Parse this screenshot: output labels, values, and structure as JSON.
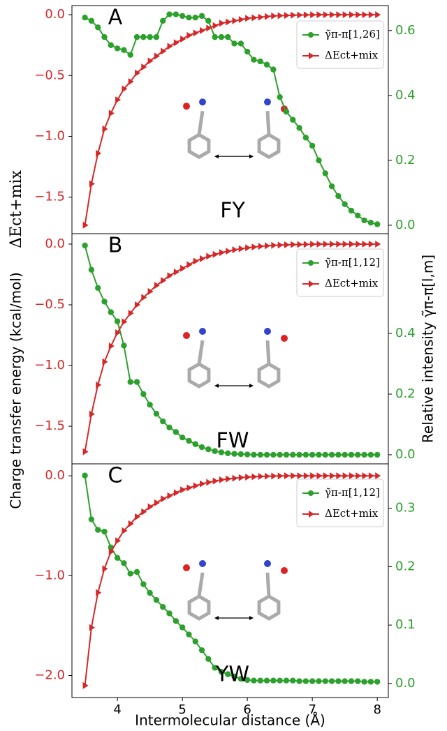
{
  "chart_data": [
    {
      "type": "line",
      "label": "A",
      "annotation": "FY",
      "legend": "upper right",
      "xlim": [
        3.3,
        8.17
      ],
      "x": [
        3.5,
        3.6,
        3.7,
        3.8,
        3.9,
        4.0,
        4.1,
        4.2,
        4.3,
        4.4,
        4.5,
        4.6,
        4.7,
        4.8,
        4.9,
        5.0,
        5.1,
        5.2,
        5.3,
        5.4,
        5.5,
        5.6,
        5.7,
        5.8,
        5.9,
        6.0,
        6.1,
        6.2,
        6.3,
        6.4,
        6.5,
        6.6,
        6.7,
        6.8,
        6.9,
        7.0,
        7.1,
        7.2,
        7.3,
        7.4,
        7.5,
        7.6,
        7.7,
        7.8,
        7.9,
        8.0
      ],
      "ylim": [
        -1.8,
        0.075
      ],
      "yticks": [
        {
          "value": 0,
          "label": "0.0"
        },
        {
          "value": -0.5,
          "label": "−0.5"
        },
        {
          "value": -1.0,
          "label": "−1.0"
        },
        {
          "value": -1.5,
          "label": "−1.5"
        }
      ],
      "y2lim": [
        -0.026,
        0.677
      ],
      "y2ticks": [
        {
          "value": 0,
          "label": "0.0"
        },
        {
          "value": 0.2,
          "label": "0.2"
        },
        {
          "value": 0.4,
          "label": "0.4"
        },
        {
          "value": 0.6,
          "label": "0.6"
        }
      ],
      "series": [
        {
          "name": "γ̃π-π[1,26]",
          "color": "#2ca02c",
          "marker": "circle",
          "axis": "y2",
          "values": [
            0.64,
            0.63,
            0.61,
            0.58,
            0.555,
            0.545,
            0.54,
            0.525,
            0.58,
            0.58,
            0.58,
            0.58,
            0.63,
            0.65,
            0.65,
            0.645,
            0.64,
            0.64,
            0.645,
            0.63,
            0.58,
            0.58,
            0.58,
            0.56,
            0.56,
            0.535,
            0.51,
            0.505,
            0.495,
            0.48,
            0.395,
            0.35,
            0.325,
            0.3,
            0.27,
            0.245,
            0.2,
            0.16,
            0.12,
            0.09,
            0.065,
            0.045,
            0.03,
            0.015,
            0.008,
            0.003
          ]
        },
        {
          "name": "ΔEct+mix",
          "color": "#d62728",
          "marker": "triangle",
          "axis": "y",
          "values": [
            -1.73,
            -1.39,
            -1.14,
            -0.94,
            -0.81,
            -0.7,
            -0.61,
            -0.55,
            -0.48,
            -0.43,
            -0.38,
            -0.34,
            -0.3,
            -0.26,
            -0.23,
            -0.2,
            -0.17,
            -0.15,
            -0.13,
            -0.11,
            -0.09,
            -0.07,
            -0.06,
            -0.05,
            -0.04,
            -0.03,
            -0.025,
            -0.02,
            -0.015,
            -0.01,
            -0.008,
            -0.006,
            -0.004,
            -0.003,
            -0.002,
            -0.001,
            0,
            0,
            0,
            0,
            0,
            0,
            0,
            0,
            0,
            0
          ]
        }
      ]
    },
    {
      "type": "line",
      "label": "B",
      "annotation": "FW",
      "legend": "upper right",
      "ylabel": "Charge transfer energy (kcal/mol)",
      "ysymbol": "ΔEct+mix",
      "y2label": "Relative intensity γ̃π-π[l,m]",
      "xlim": [
        3.3,
        8.17
      ],
      "x": [
        3.5,
        3.6,
        3.7,
        3.8,
        3.9,
        4.0,
        4.1,
        4.2,
        4.3,
        4.4,
        4.5,
        4.6,
        4.7,
        4.8,
        4.9,
        5.0,
        5.1,
        5.2,
        5.3,
        5.4,
        5.5,
        5.6,
        5.7,
        5.8,
        5.9,
        6.0,
        6.1,
        6.2,
        6.3,
        6.4,
        6.5,
        6.6,
        6.7,
        6.8,
        6.9,
        7.0,
        7.1,
        7.2,
        7.3,
        7.4,
        7.5,
        7.6,
        7.7,
        7.8,
        7.9,
        8.0
      ],
      "ylim": [
        -1.81,
        0.086
      ],
      "yticks": [
        {
          "value": 0,
          "label": "0.0"
        },
        {
          "value": -0.5,
          "label": "−0.5"
        },
        {
          "value": -1.0,
          "label": "−1.0"
        },
        {
          "value": -1.5,
          "label": "−1.5"
        }
      ],
      "y2lim": [
        -0.03,
        0.729
      ],
      "y2ticks": [
        {
          "value": 0,
          "label": "0.0"
        },
        {
          "value": 0.2,
          "label": "0.2"
        },
        {
          "value": 0.4,
          "label": "0.4"
        }
      ],
      "series": [
        {
          "name": "γ̃π-π[1,12]",
          "color": "#2ca02c",
          "marker": "circle",
          "axis": "y2",
          "values": [
            0.69,
            0.61,
            0.55,
            0.505,
            0.47,
            0.44,
            0.36,
            0.24,
            0.24,
            0.2,
            0.165,
            0.135,
            0.11,
            0.09,
            0.075,
            0.057,
            0.046,
            0.035,
            0.025,
            0.018,
            0.012,
            0.008,
            0.005,
            0.003,
            0.002,
            0.001,
            0,
            0,
            0,
            0,
            0,
            0,
            0,
            0,
            0,
            0,
            0,
            0,
            0,
            0,
            0,
            0,
            0,
            0,
            0,
            0
          ]
        },
        {
          "name": "ΔEct+mix",
          "color": "#d62728",
          "marker": "triangle",
          "axis": "y",
          "values": [
            -1.71,
            -1.4,
            -1.16,
            -0.97,
            -0.84,
            -0.73,
            -0.64,
            -0.57,
            -0.5,
            -0.44,
            -0.39,
            -0.34,
            -0.3,
            -0.26,
            -0.23,
            -0.2,
            -0.17,
            -0.14,
            -0.12,
            -0.1,
            -0.085,
            -0.07,
            -0.058,
            -0.047,
            -0.038,
            -0.03,
            -0.024,
            -0.018,
            -0.014,
            -0.01,
            -0.008,
            -0.006,
            -0.004,
            -0.003,
            -0.002,
            -0.001,
            0,
            0,
            0,
            0,
            0,
            0,
            0,
            0,
            0,
            0
          ]
        }
      ]
    },
    {
      "type": "line",
      "label": "C",
      "annotation": "YW",
      "legend": "upper right",
      "xlabel": "Intermolecular distance (Å)",
      "xlim": [
        3.3,
        8.17
      ],
      "xticks": [
        4,
        5,
        6,
        7,
        8
      ],
      "x": [
        3.5,
        3.6,
        3.7,
        3.8,
        3.9,
        4.0,
        4.1,
        4.2,
        4.3,
        4.4,
        4.5,
        4.6,
        4.7,
        4.8,
        4.9,
        5.0,
        5.1,
        5.2,
        5.3,
        5.4,
        5.5,
        5.6,
        5.7,
        5.8,
        5.9,
        6.0,
        6.1,
        6.2,
        6.3,
        6.4,
        6.5,
        6.6,
        6.7,
        6.8,
        6.9,
        7.0,
        7.1,
        7.2,
        7.3,
        7.4,
        7.5,
        7.6,
        7.7,
        7.8,
        7.9,
        8.0
      ],
      "ylim": [
        -2.22,
        0.12
      ],
      "yticks": [
        {
          "value": 0,
          "label": "0.0"
        },
        {
          "value": -1.0,
          "label": "−1.0"
        },
        {
          "value": -2.0,
          "label": "−2.0"
        }
      ],
      "y2lim": [
        -0.024,
        0.376
      ],
      "y2ticks": [
        {
          "value": 0,
          "label": "0.0"
        },
        {
          "value": 0.1,
          "label": "0.1"
        },
        {
          "value": 0.2,
          "label": "0.2"
        },
        {
          "value": 0.3,
          "label": "0.3"
        }
      ],
      "series": [
        {
          "name": "γ̃π-π[1,12]",
          "color": "#2ca02c",
          "marker": "circle",
          "axis": "y2",
          "values": [
            0.356,
            0.281,
            0.263,
            0.26,
            0.233,
            0.215,
            0.206,
            0.188,
            0.191,
            0.17,
            0.155,
            0.143,
            0.131,
            0.12,
            0.107,
            0.096,
            0.084,
            0.072,
            0.057,
            0.042,
            0.027,
            0.02,
            0.016,
            0.012,
            0.008,
            0.006,
            0.005,
            0.005,
            0.005,
            0.005,
            0.005,
            0.005,
            0.005,
            0.004,
            0.004,
            0.004,
            0.004,
            0.004,
            0.004,
            0.004,
            0.004,
            0.004,
            0.004,
            0.003,
            0.003,
            0.003
          ]
        },
        {
          "name": "ΔEct+mix",
          "color": "#d62728",
          "marker": "triangle",
          "axis": "y",
          "values": [
            -2.1,
            -1.52,
            -1.17,
            -0.93,
            -0.76,
            -0.65,
            -0.55,
            -0.48,
            -0.41,
            -0.36,
            -0.31,
            -0.27,
            -0.23,
            -0.2,
            -0.17,
            -0.14,
            -0.12,
            -0.1,
            -0.08,
            -0.065,
            -0.052,
            -0.04,
            -0.031,
            -0.024,
            -0.018,
            -0.013,
            -0.009,
            -0.006,
            -0.004,
            -0.002,
            -0.001,
            0,
            0,
            0,
            0,
            0,
            0,
            0,
            0,
            0,
            0,
            0,
            0,
            0,
            0,
            0
          ]
        }
      ]
    }
  ]
}
